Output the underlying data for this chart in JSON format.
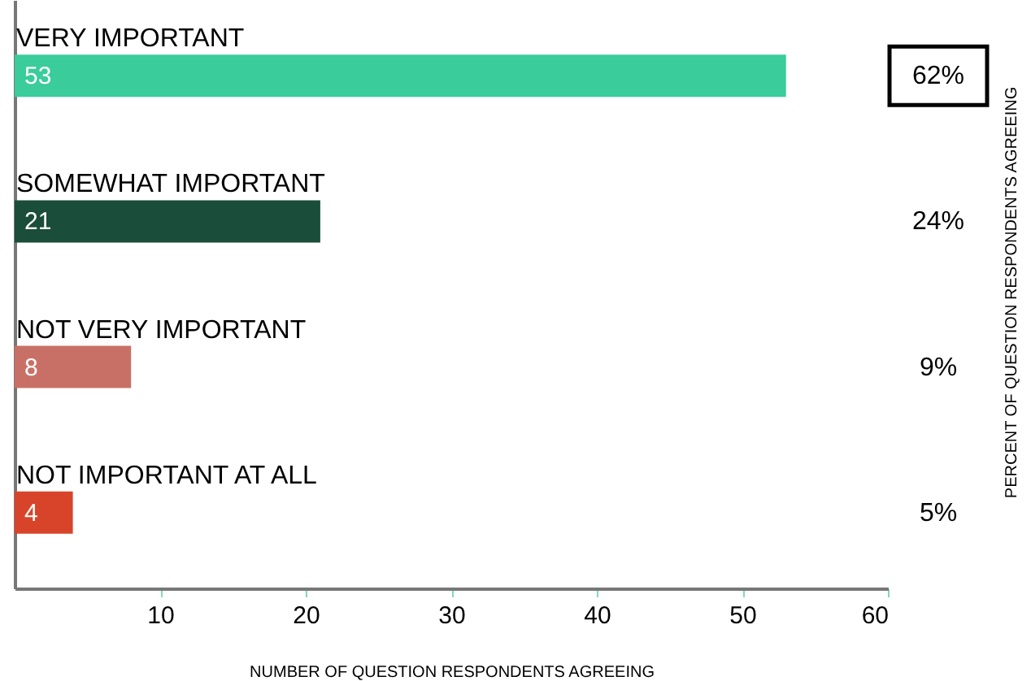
{
  "chart_data": {
    "type": "bar",
    "orientation": "horizontal",
    "categories": [
      "VERY IMPORTANT",
      "SOMEWHAT IMPORTANT",
      "NOT VERY IMPORTANT",
      "NOT IMPORTANT AT ALL"
    ],
    "values": [
      53,
      21,
      8,
      4
    ],
    "colors": [
      "#3acc9a",
      "#1a4d3a",
      "#c97066",
      "#d8442a"
    ],
    "data_labels": true,
    "xlim": [
      0,
      60
    ],
    "xticks": [
      10,
      20,
      30,
      40,
      50,
      60
    ],
    "xlabel": "NUMBER OF QUESTION RESPONDENTS AGREEING",
    "annotations": [
      "62%",
      "24%",
      "9%",
      "5%",
      "PERCENT OF QUESTION RESPONDENTS AGREEING"
    ]
  }
}
